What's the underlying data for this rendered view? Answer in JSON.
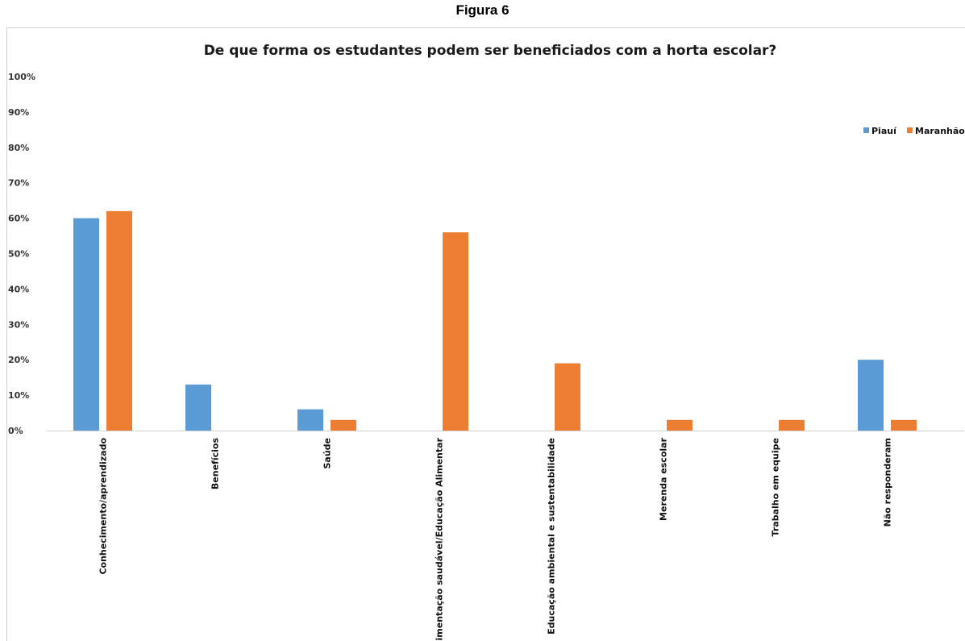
{
  "caption": "Figura 6",
  "chart_data": {
    "type": "bar",
    "title": "De que forma os estudantes podem ser beneficiados com a horta escolar?",
    "xlabel": "",
    "ylabel": "",
    "ylim": [
      0,
      100
    ],
    "yticks": [
      "0%",
      "10%",
      "20%",
      "30%",
      "40%",
      "50%",
      "60%",
      "70%",
      "80%",
      "90%",
      "100%"
    ],
    "grid": false,
    "legend_position": "top-right",
    "categories": [
      "Conhecimento/aprendizado",
      "Benefícios",
      "Saúde",
      "Alimentação saudável/Educação Alimentar",
      "Educação ambiental e sustentabilidade",
      "Merenda escolar",
      "Trabalho em equipe",
      "Não responderam"
    ],
    "series": [
      {
        "name": "Piauí",
        "color": "#5b9bd5",
        "values": [
          60,
          13,
          6,
          0,
          0,
          0,
          0,
          20
        ]
      },
      {
        "name": "Maranhão",
        "color": "#ed7d31",
        "values": [
          62,
          0,
          3,
          56,
          19,
          3,
          3,
          3
        ]
      }
    ]
  }
}
